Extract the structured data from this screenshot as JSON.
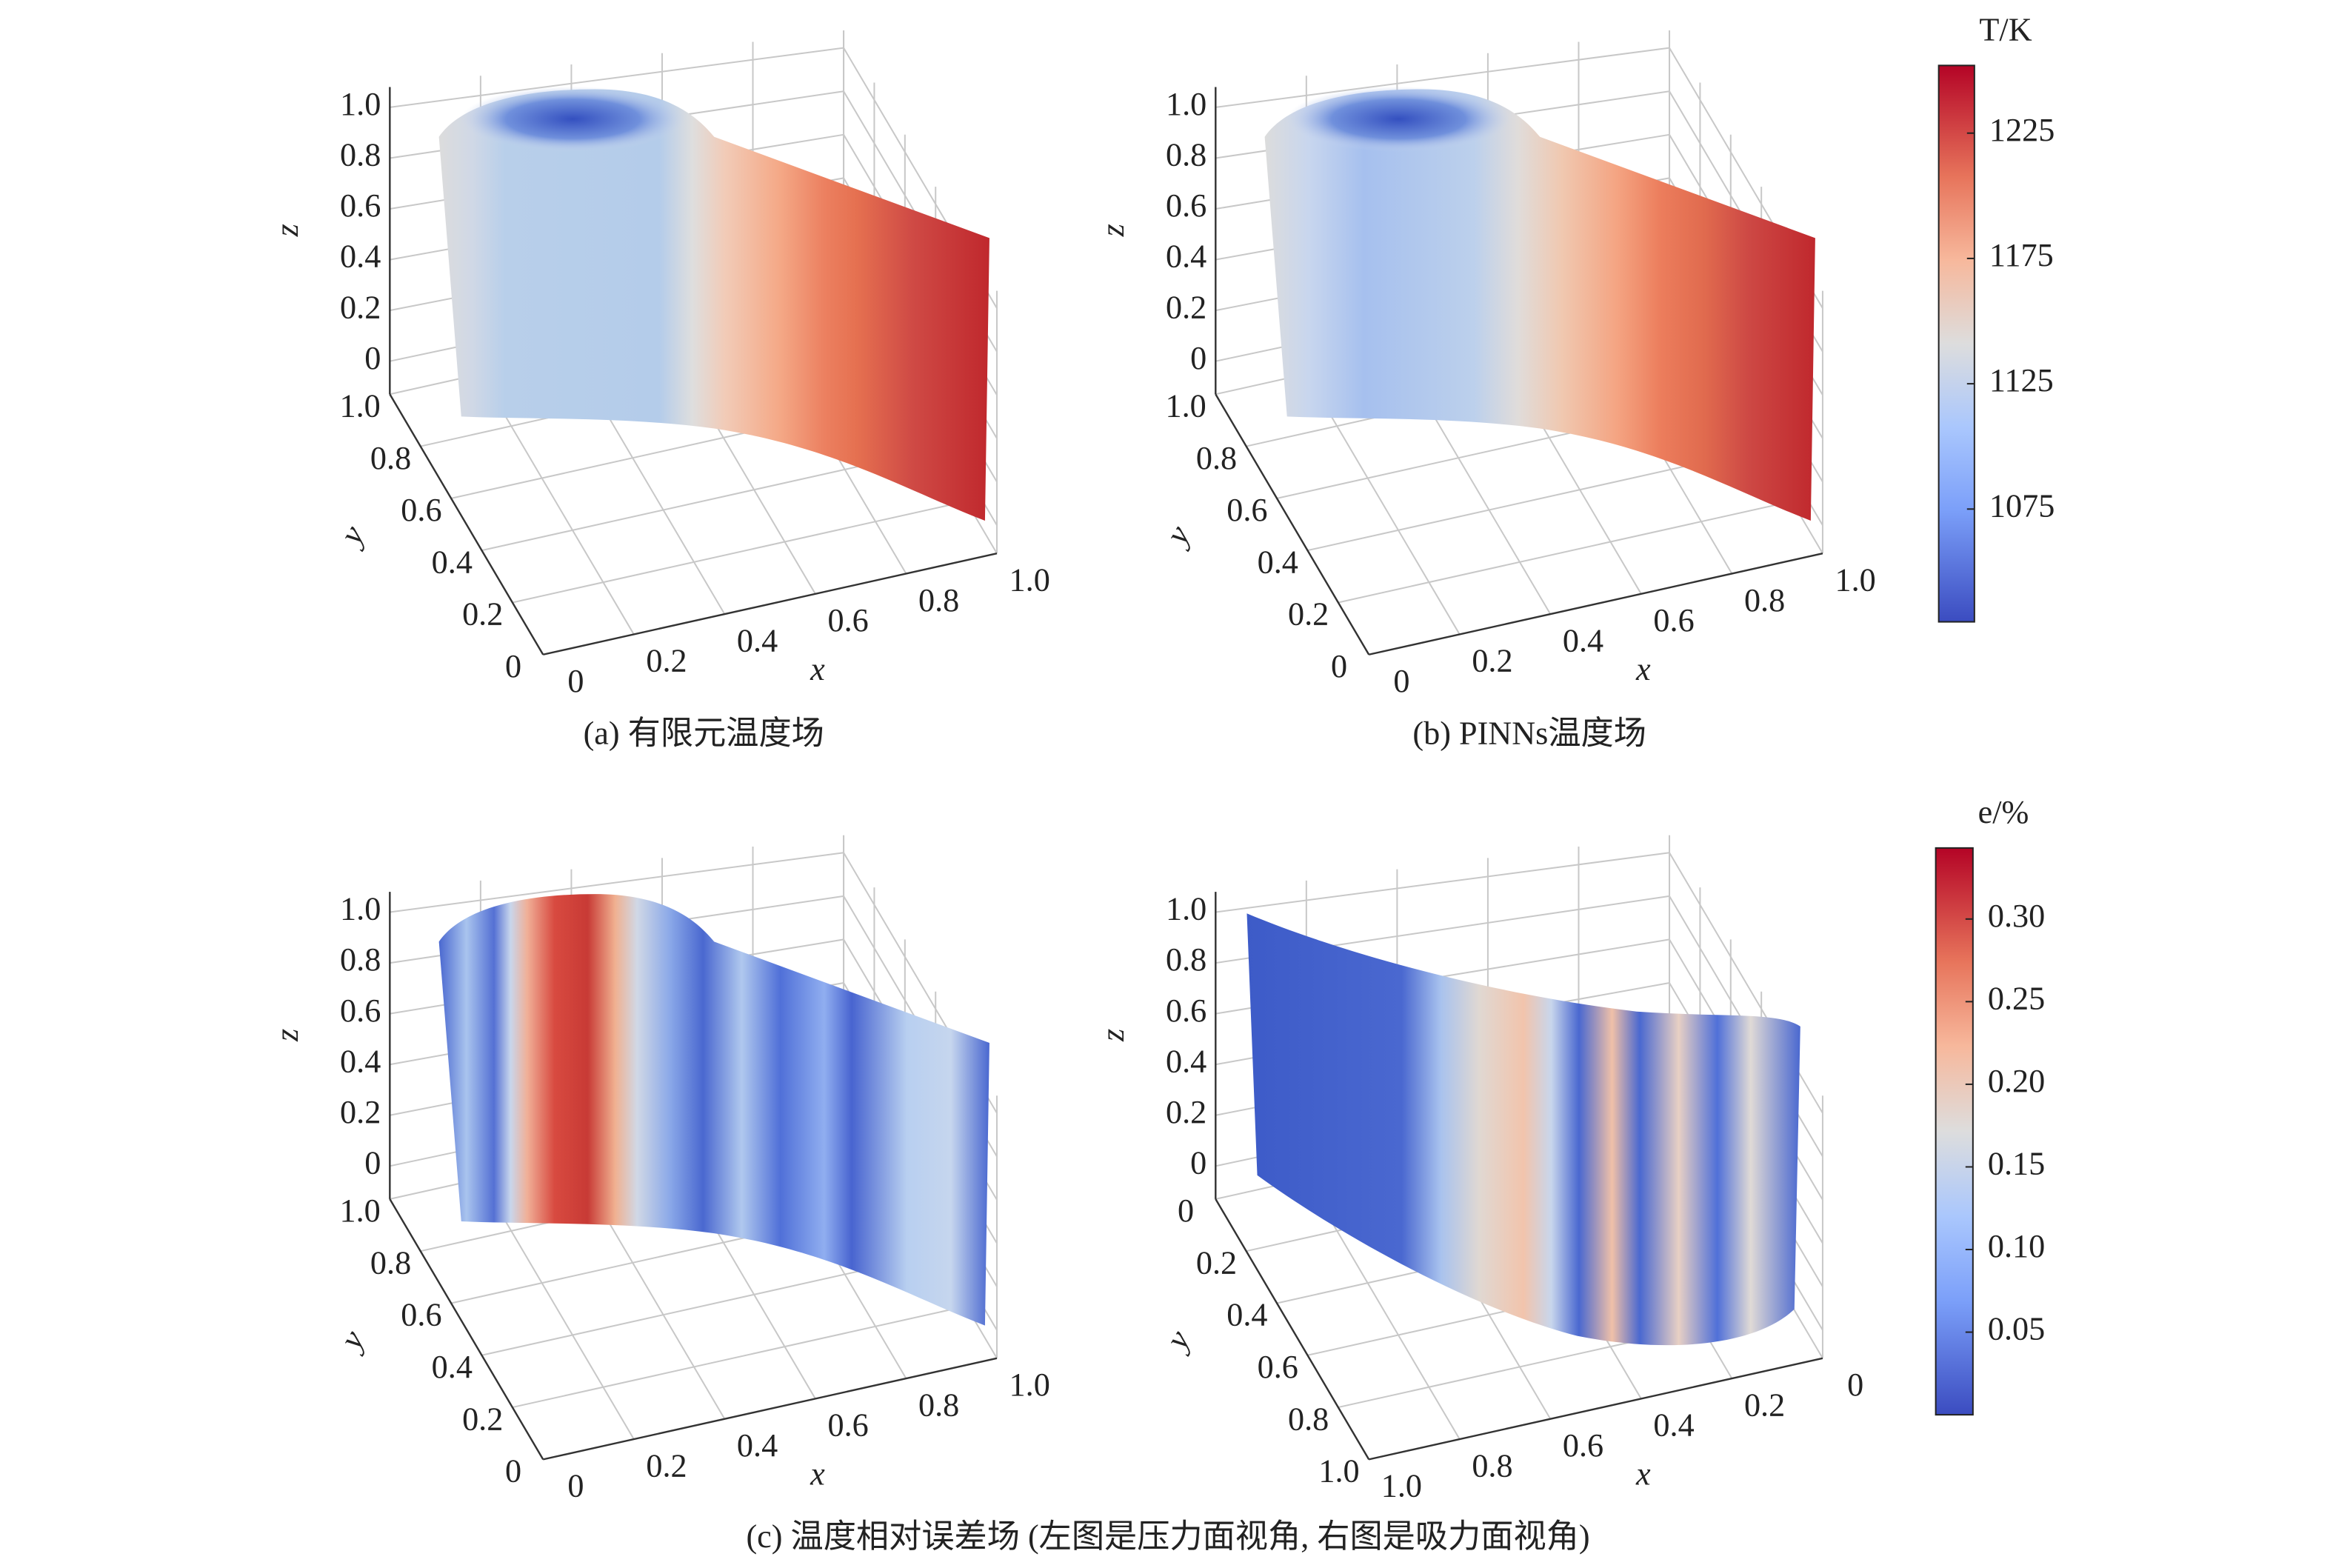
{
  "chart_data": [
    {
      "type": "surface3d",
      "title": "(a) 有限元温度场",
      "xlabel": "x",
      "ylabel": "y",
      "zlabel": "z",
      "xlim": [
        0,
        1
      ],
      "ylim": [
        0,
        1
      ],
      "zlim": [
        -0.13,
        1.08
      ],
      "xticks": [
        0,
        0.2,
        0.4,
        0.6,
        0.8,
        {
          "value": 1,
          "label": "1.0"
        }
      ],
      "yticks": [
        0,
        0.2,
        0.4,
        0.6,
        0.8,
        {
          "value": 1,
          "label": "1.0"
        }
      ],
      "zticks": [
        0,
        0.2,
        0.4,
        0.6,
        0.8,
        {
          "value": 1,
          "label": "1.0"
        }
      ]
    },
    {
      "type": "surface3d",
      "title": "(b) PINNs温度场",
      "xlabel": "x",
      "ylabel": "y",
      "zlabel": "z",
      "xlim": [
        0,
        1
      ],
      "ylim": [
        0,
        1
      ],
      "zlim": [
        -0.13,
        1.08
      ],
      "xticks": [
        0,
        0.2,
        0.4,
        0.6,
        0.8,
        {
          "value": 1,
          "label": "1.0"
        }
      ],
      "yticks": [
        0,
        0.2,
        0.4,
        0.6,
        0.8,
        {
          "value": 1,
          "label": "1.0"
        }
      ],
      "zticks": [
        0,
        0.2,
        0.4,
        0.6,
        0.8,
        {
          "value": 1,
          "label": "1.0"
        }
      ]
    },
    {
      "type": "surface3d",
      "xlabel": "x",
      "ylabel": "y",
      "zlabel": "z",
      "xlim": [
        0,
        1
      ],
      "ylim": [
        0,
        1
      ],
      "zlim": [
        -0.13,
        1.08
      ],
      "xticks": [
        0,
        0.2,
        0.4,
        0.6,
        0.8,
        {
          "value": 1,
          "label": "1.0"
        }
      ],
      "yticks": [
        0,
        0.2,
        0.4,
        0.6,
        0.8,
        {
          "value": 1,
          "label": "1.0"
        }
      ],
      "zticks": [
        0,
        0.2,
        0.4,
        0.6,
        0.8,
        {
          "value": 1,
          "label": "1.0"
        }
      ]
    },
    {
      "type": "surface3d",
      "xlabel": "x",
      "ylabel": "y",
      "zlabel": "z",
      "xlim": [
        1,
        0
      ],
      "ylim": [
        1,
        0
      ],
      "zlim": [
        -0.13,
        1.08
      ],
      "xticks": [
        0,
        0.2,
        0.4,
        0.6,
        0.8,
        {
          "value": 1,
          "label": "1.0"
        }
      ],
      "yticks": [
        0,
        0.2,
        0.4,
        0.6,
        0.8,
        {
          "value": 1,
          "label": "1.0"
        }
      ],
      "zticks": [
        0,
        0.2,
        0.4,
        0.6,
        0.8,
        {
          "value": 1,
          "label": "1.0"
        }
      ]
    },
    {
      "type": "colorbar",
      "title": "T/K",
      "ylim": [
        1030,
        1252
      ],
      "yticks": [
        1075,
        1125,
        1175,
        1225
      ]
    },
    {
      "type": "colorbar",
      "title": "e/%",
      "ylim": [
        0,
        0.343
      ],
      "yticks": [
        0.05,
        {
          "value": 0.1,
          "label": "0.10"
        },
        0.15,
        {
          "value": 0.2,
          "label": "0.20"
        },
        0.25,
        {
          "value": 0.3,
          "label": "0.30"
        }
      ]
    }
  ],
  "caption": "(c) 温度相对误差场 (左图是压力面视角, 右图是吸力面视角)"
}
